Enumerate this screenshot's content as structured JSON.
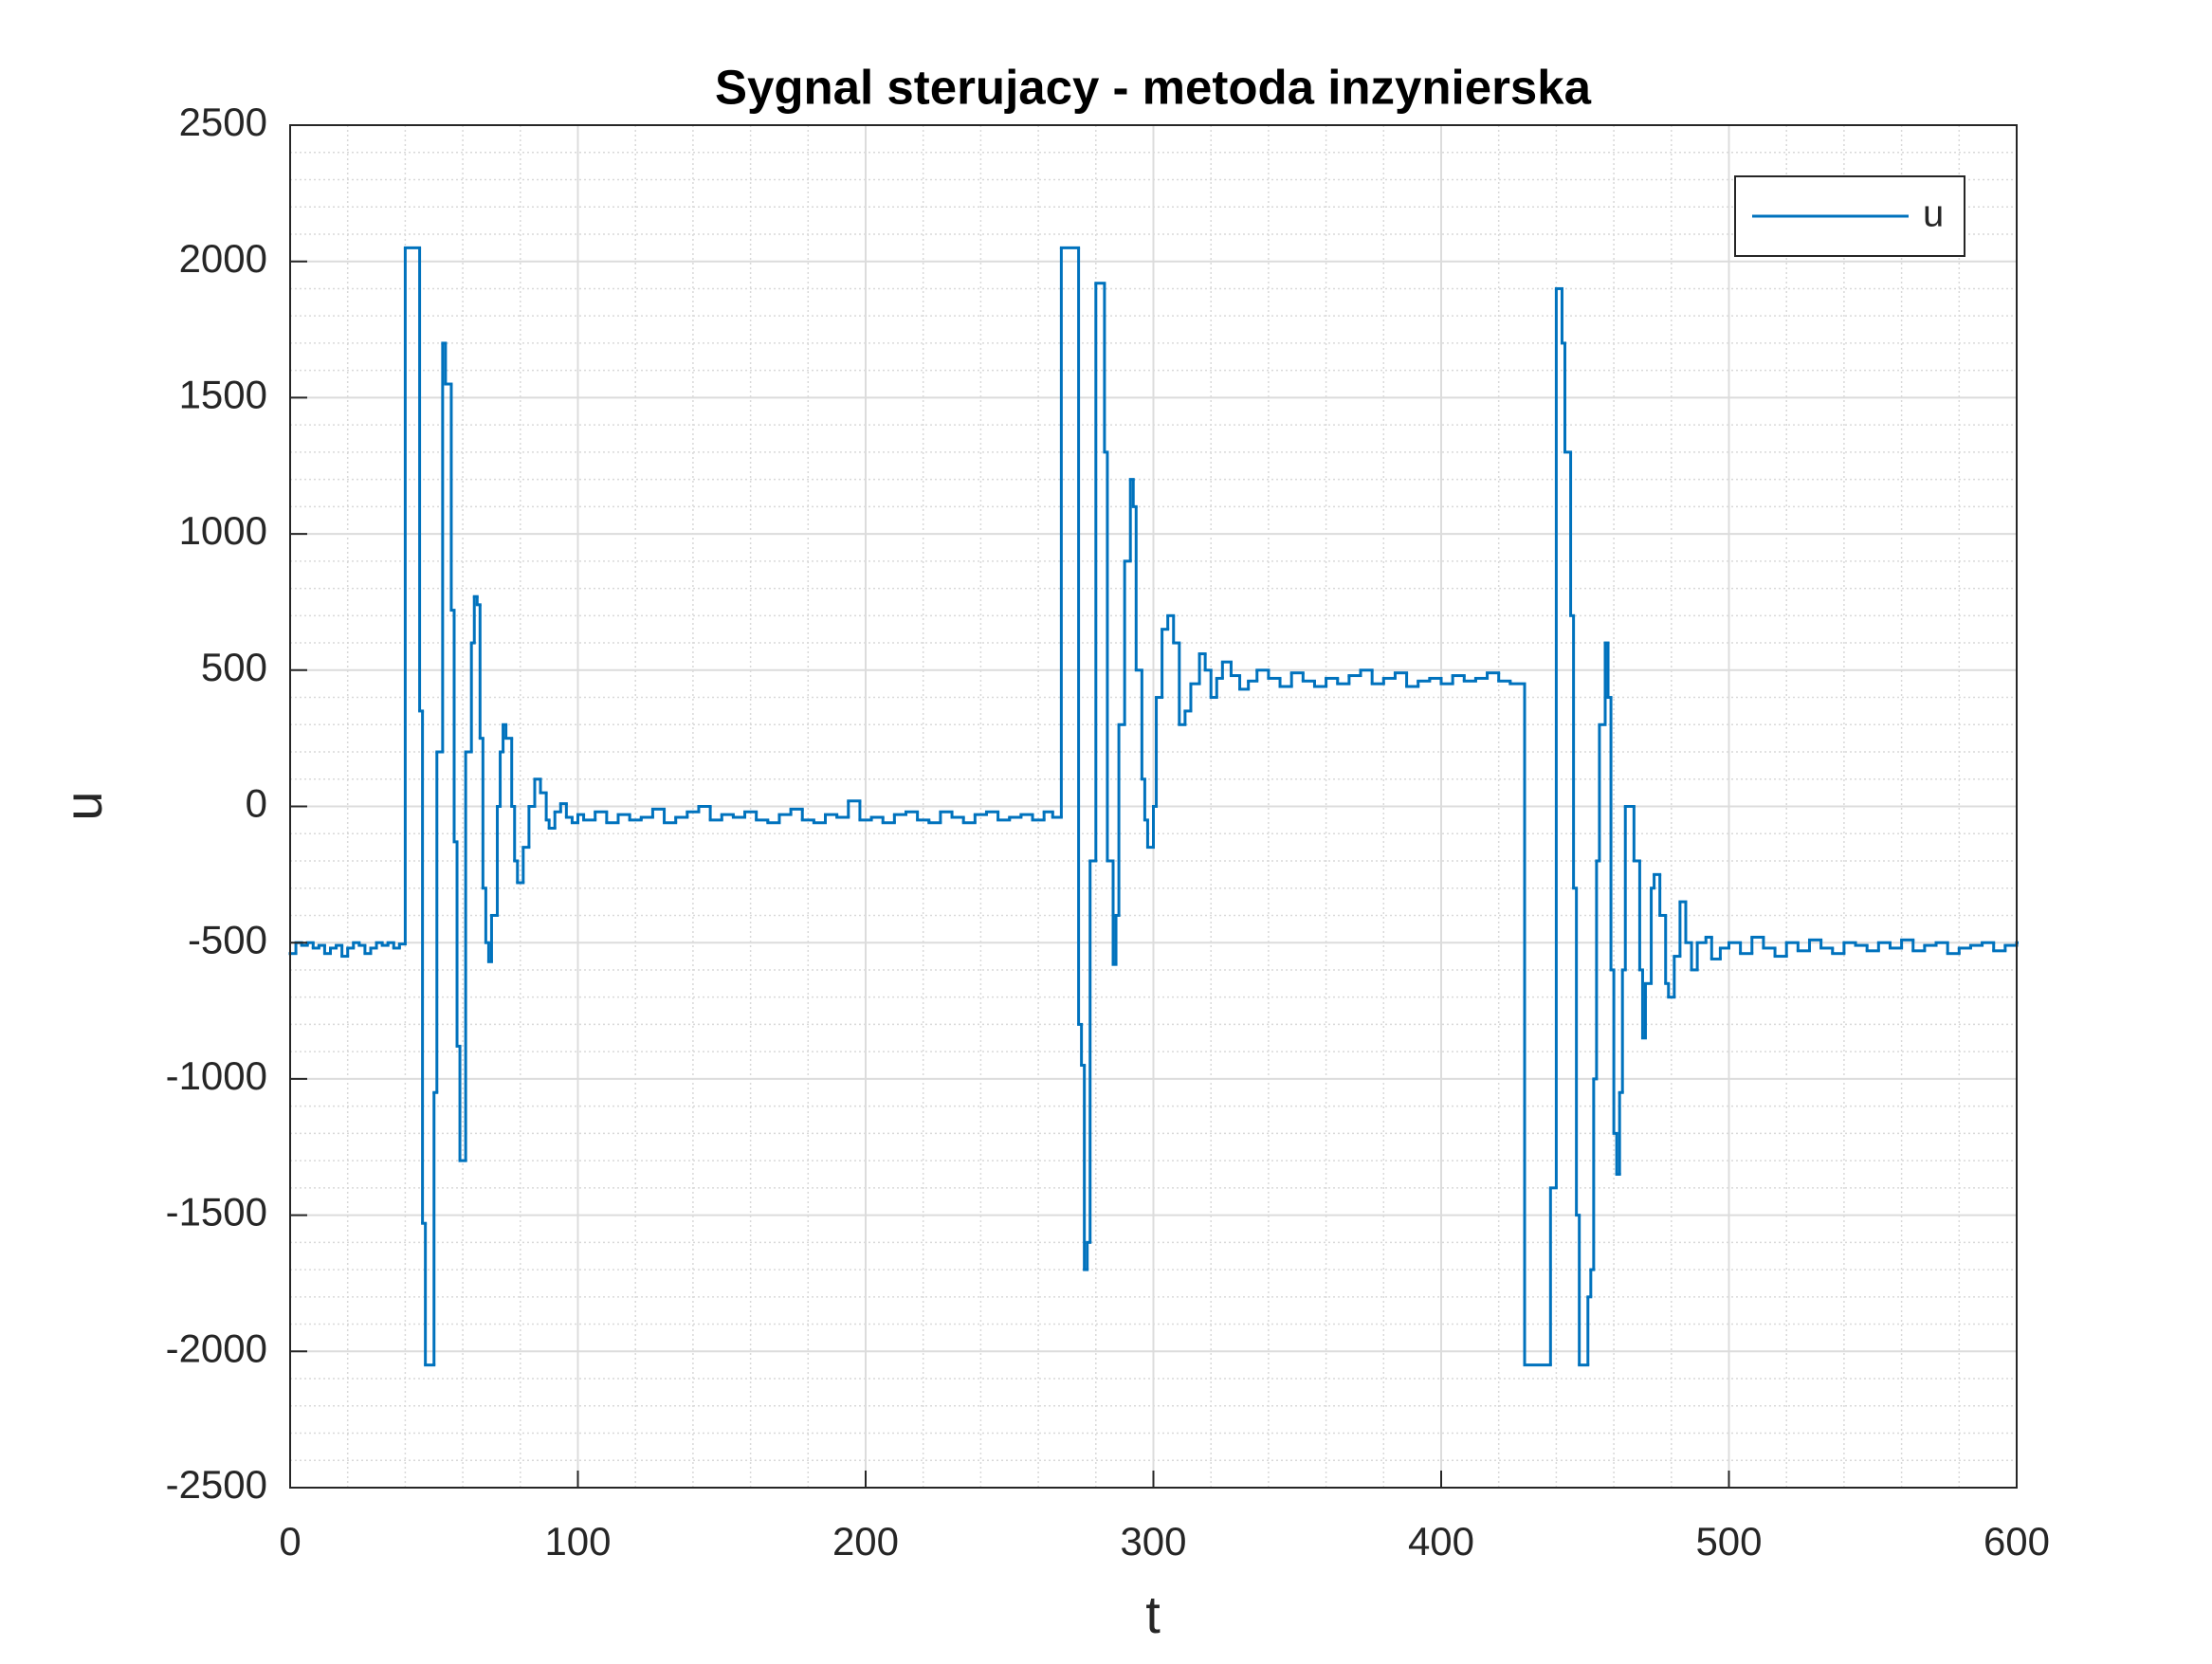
{
  "chart_data": {
    "type": "line",
    "title": "Sygnal sterujacy - metoda inzynierska",
    "xlabel": "t",
    "ylabel": "u",
    "xlim": [
      0,
      600
    ],
    "xticks": [
      0,
      100,
      200,
      300,
      400,
      500,
      600
    ],
    "ylim": [
      -2500,
      2500
    ],
    "yticks": [
      -2500,
      -2000,
      -1500,
      -1000,
      -500,
      0,
      500,
      1000,
      1500,
      2000,
      2500
    ],
    "grid": true,
    "minor_grid": true,
    "legend": "upper right",
    "step": true,
    "series": [
      {
        "name": "u",
        "color": "#0072bd",
        "x": [
          0,
          2,
          4,
          6,
          8,
          10,
          12,
          14,
          16,
          18,
          20,
          22,
          24,
          26,
          28,
          30,
          32,
          34,
          36,
          38,
          40,
          45,
          46,
          47,
          50,
          51,
          53,
          54,
          56,
          57,
          58,
          59,
          61,
          63,
          64,
          65,
          66,
          67,
          68,
          69,
          70,
          72,
          73,
          74,
          75,
          77,
          78,
          79,
          81,
          83,
          85,
          87,
          89,
          90,
          92,
          94,
          96,
          98,
          100,
          102,
          106,
          110,
          114,
          118,
          122,
          126,
          130,
          134,
          138,
          142,
          146,
          150,
          154,
          158,
          162,
          166,
          170,
          174,
          178,
          182,
          186,
          190,
          194,
          198,
          202,
          206,
          210,
          214,
          218,
          222,
          226,
          230,
          234,
          238,
          242,
          246,
          250,
          254,
          258,
          262,
          265,
          268,
          274,
          275,
          276,
          277,
          278,
          280,
          283,
          284,
          286,
          287,
          288,
          290,
          292,
          293,
          294,
          296,
          297,
          298,
          300,
          301,
          303,
          305,
          307,
          309,
          311,
          313,
          316,
          318,
          320,
          322,
          324,
          327,
          330,
          333,
          336,
          340,
          344,
          348,
          352,
          356,
          360,
          364,
          368,
          372,
          376,
          380,
          384,
          388,
          392,
          396,
          400,
          404,
          408,
          412,
          416,
          420,
          424,
          429,
          438,
          440,
          442,
          443,
          445,
          446,
          447,
          448,
          451,
          452,
          453,
          454,
          455,
          457,
          458,
          459,
          460,
          461,
          462,
          463,
          464,
          466,
          467,
          469,
          470,
          471,
          473,
          474,
          476,
          478,
          479,
          481,
          483,
          485,
          487,
          489,
          492,
          494,
          497,
          500,
          504,
          508,
          512,
          516,
          520,
          524,
          528,
          532,
          536,
          540,
          544,
          548,
          552,
          556,
          560,
          564,
          568,
          572,
          576,
          580,
          584,
          588,
          592,
          596,
          600
        ],
        "values": [
          -540,
          -500,
          -510,
          -500,
          -520,
          -510,
          -540,
          -520,
          -510,
          -550,
          -520,
          -500,
          -510,
          -540,
          -520,
          -500,
          -510,
          -500,
          -520,
          -505,
          2050,
          350,
          -1530,
          -2050,
          -1050,
          200,
          1700,
          1550,
          720,
          -130,
          -880,
          -1300,
          200,
          600,
          770,
          740,
          250,
          -300,
          -500,
          -570,
          -400,
          0,
          200,
          300,
          250,
          0,
          -200,
          -280,
          -150,
          0,
          100,
          50,
          -50,
          -80,
          -20,
          10,
          -40,
          -60,
          -30,
          -50,
          -20,
          -60,
          -30,
          -50,
          -40,
          -10,
          -60,
          -40,
          -20,
          0,
          -50,
          -30,
          -40,
          -20,
          -50,
          -60,
          -30,
          -10,
          -50,
          -60,
          -30,
          -40,
          20,
          -50,
          -40,
          -60,
          -30,
          -20,
          -50,
          -60,
          -20,
          -40,
          -60,
          -30,
          -20,
          -50,
          -40,
          -30,
          -50,
          -20,
          -40,
          2050,
          -800,
          -950,
          -1700,
          -1600,
          -200,
          1920,
          1300,
          -200,
          -580,
          -400,
          300,
          900,
          1200,
          1100,
          500,
          100,
          -50,
          -150,
          0,
          400,
          650,
          700,
          600,
          300,
          350,
          450,
          560,
          500,
          400,
          470,
          530,
          480,
          430,
          460,
          500,
          470,
          440,
          490,
          460,
          440,
          470,
          450,
          480,
          500,
          450,
          470,
          490,
          440,
          460,
          470,
          450,
          480,
          460,
          470,
          490,
          460,
          450,
          -2050,
          -1400,
          1900,
          1700,
          1300,
          700,
          -300,
          -1500,
          -2050,
          -1800,
          -1700,
          -1000,
          -200,
          300,
          600,
          400,
          -600,
          -1200,
          -1350,
          -1050,
          -600,
          0,
          0,
          -200,
          -600,
          -850,
          -650,
          -300,
          -250,
          -400,
          -650,
          -700,
          -550,
          -350,
          -500,
          -600,
          -500,
          -480,
          -560,
          -520,
          -500,
          -540,
          -480,
          -520,
          -550,
          -500,
          -530,
          -490,
          -520,
          -540,
          -500,
          -510,
          -530,
          -500,
          -520,
          -490,
          -530,
          -510,
          -500,
          -540,
          -520,
          -510,
          -500,
          -530,
          -510,
          -500
        ]
      }
    ]
  }
}
